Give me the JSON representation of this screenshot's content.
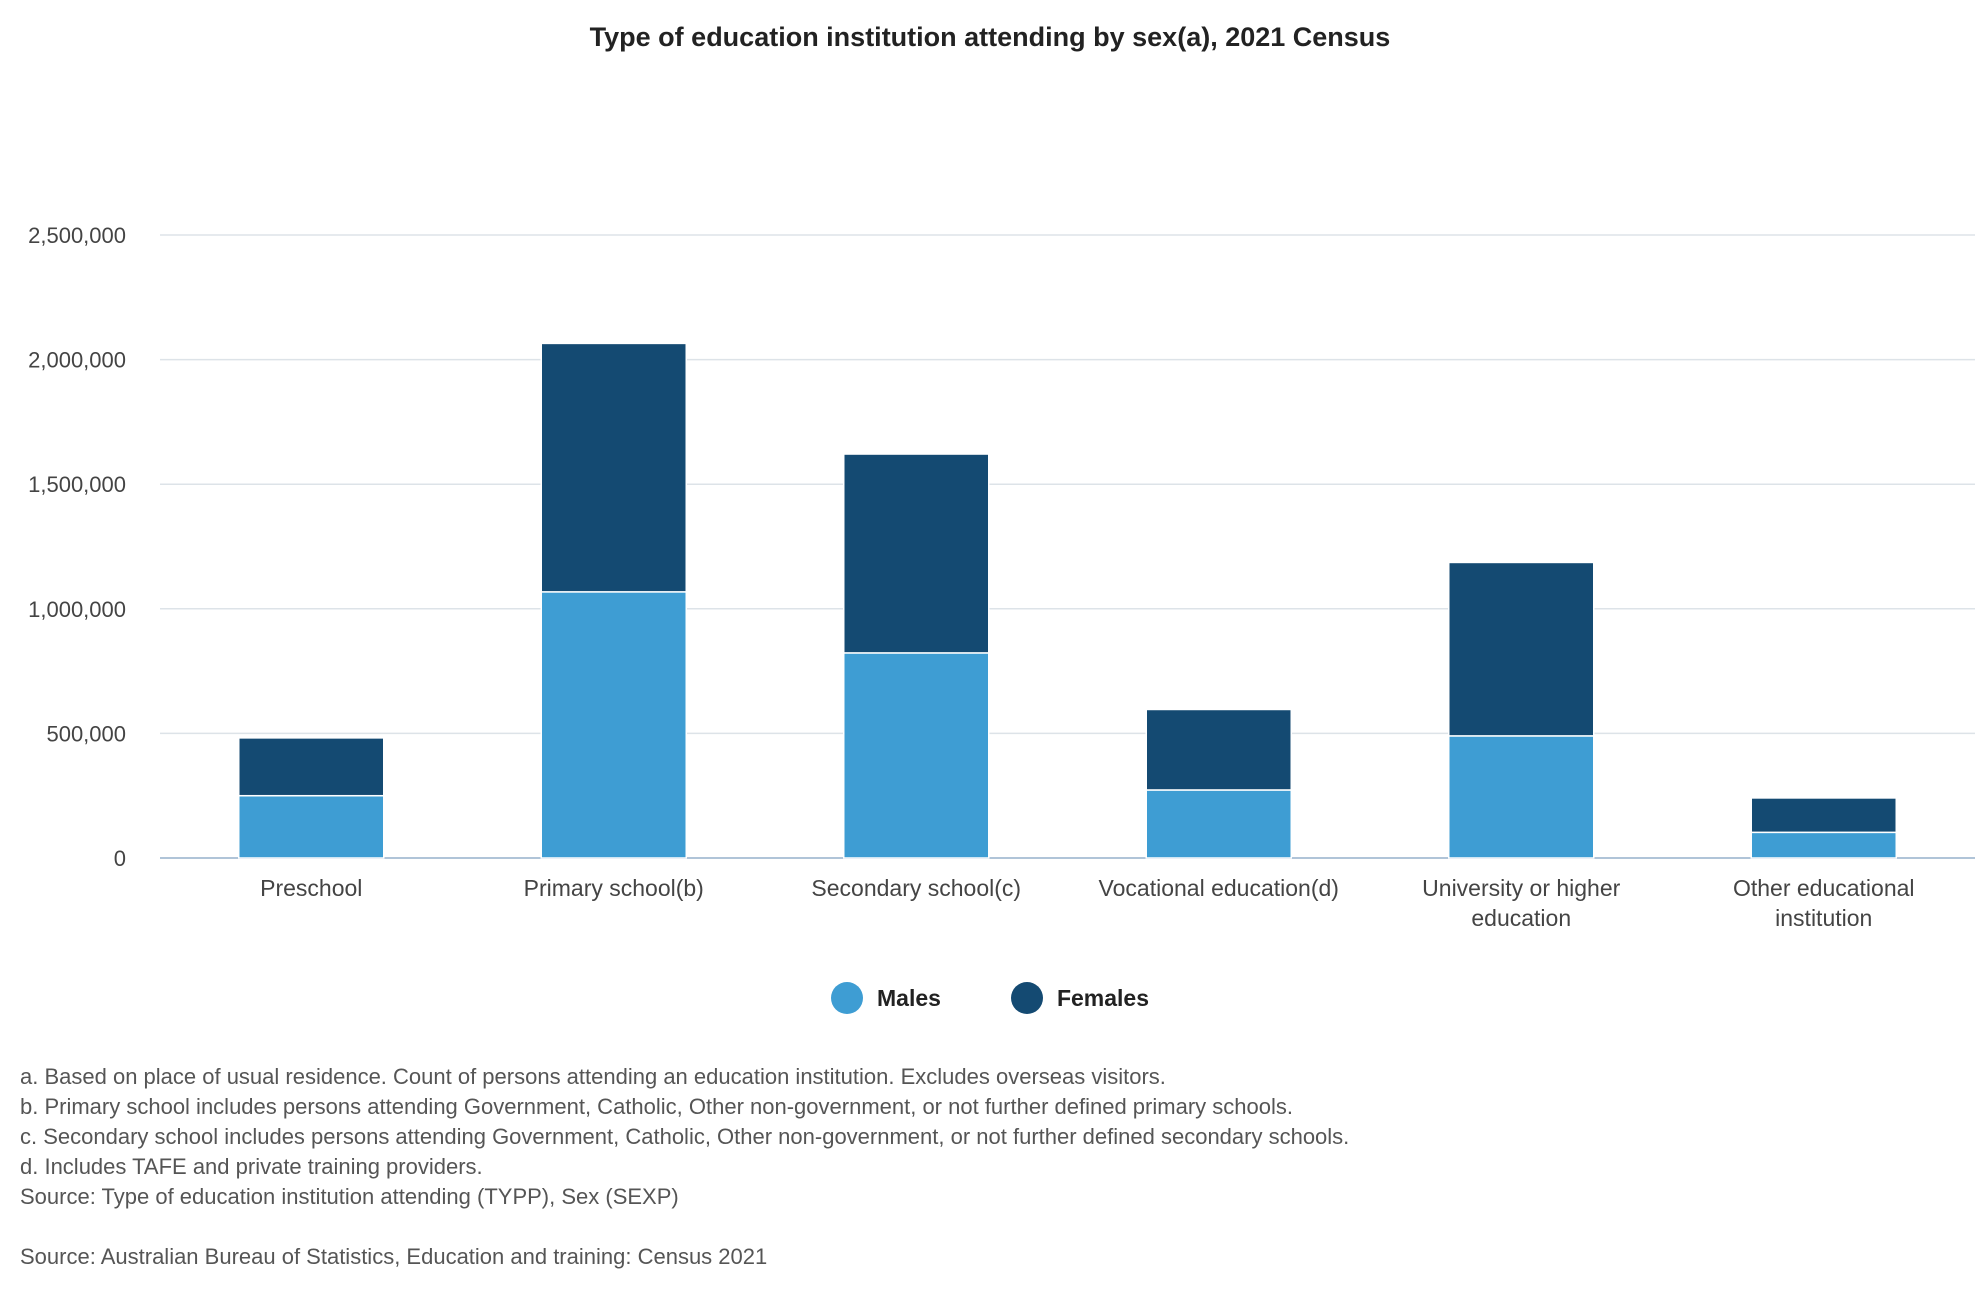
{
  "colors": {
    "males": "#3e9dd3",
    "females": "#144a72",
    "grid": "#dde3e8",
    "axis": "#b0c4d8"
  },
  "chart_data": {
    "type": "bar",
    "stacked": true,
    "title": "Type of education institution attending by sex(a), 2021 Census",
    "categories": [
      [
        "Preschool"
      ],
      [
        "Primary school(b)"
      ],
      [
        "Secondary school(c)"
      ],
      [
        "Vocational education(d)"
      ],
      [
        "University or higher",
        "education"
      ],
      [
        "Other educational",
        "institution"
      ]
    ],
    "series": [
      {
        "name": "Males",
        "values": [
          250000,
          1068000,
          823000,
          273000,
          490000,
          103000
        ]
      },
      {
        "name": "Females",
        "values": [
          232000,
          997000,
          798000,
          323000,
          696000,
          138000
        ]
      }
    ],
    "ylim": [
      0,
      2500000
    ],
    "yticks": [
      "0",
      "500,000",
      "1,000,000",
      "1,500,000",
      "2,000,000",
      "2,500,000"
    ],
    "ytick_values": [
      0,
      500000,
      1000000,
      1500000,
      2000000,
      2500000
    ],
    "grid": true,
    "legend_position": "bottom-center"
  },
  "legend": {
    "males": "Males",
    "females": "Females"
  },
  "notes": [
    "a. Based on place of usual residence. Count of persons attending an education institution. Excludes overseas visitors.",
    "b. Primary school includes persons attending Government, Catholic, Other non-government, or not further defined primary schools.",
    "c. Secondary school includes persons attending Government, Catholic, Other non-government, or not further defined secondary schools.",
    "d. Includes TAFE and private training providers.",
    "Source: Type of education institution attending (TYPP), Sex (SEXP)"
  ],
  "source": "Source: Australian Bureau of Statistics, Education and training: Census 2021"
}
